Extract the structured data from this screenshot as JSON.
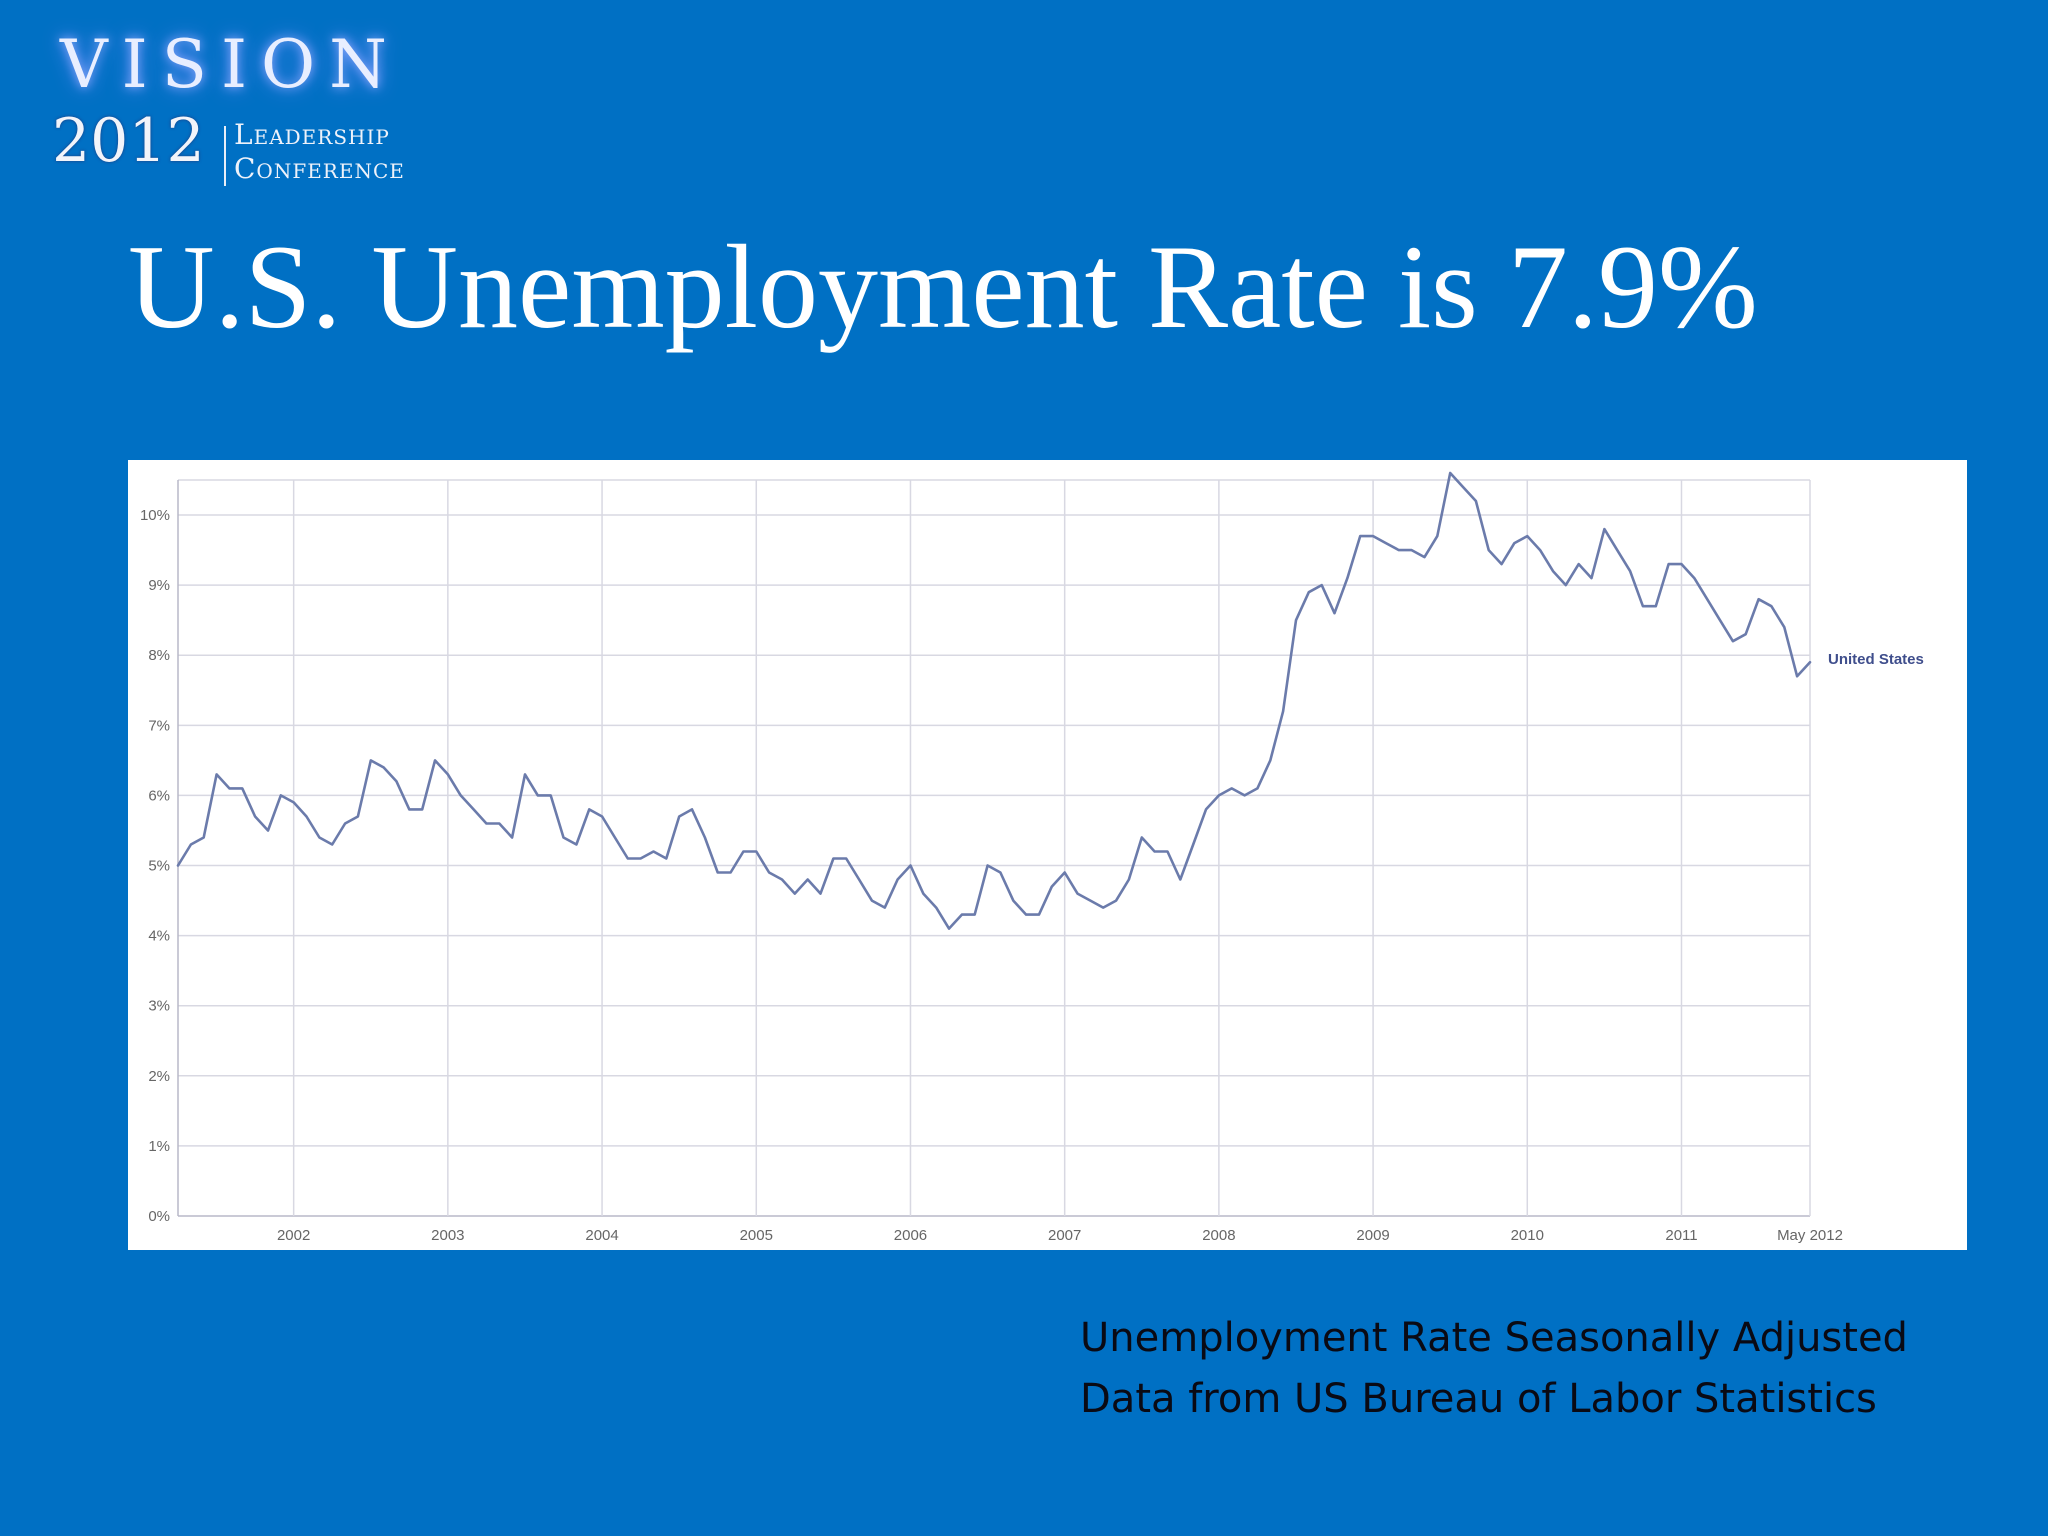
{
  "logo": {
    "line1": "VISION",
    "year": "2012",
    "line2": "Leadership",
    "line3": "Conference"
  },
  "slide_title": "U.S. Unemployment Rate is 7.9%",
  "caption": {
    "line1": "Unemployment Rate Seasonally Adjusted",
    "line2": "Data from US Bureau of Labor Statistics"
  },
  "colors": {
    "background": "#0070c4",
    "line": "#6b7bab",
    "panel": "#ffffff"
  },
  "chart_data": {
    "type": "line",
    "title": "",
    "xlabel": "",
    "ylabel": "",
    "ylim": [
      0,
      10.5
    ],
    "xlim": [
      "2001-04",
      "2012-05"
    ],
    "y_ticks": [
      "0%",
      "1%",
      "2%",
      "3%",
      "4%",
      "5%",
      "6%",
      "7%",
      "8%",
      "9%",
      "10%"
    ],
    "x_ticks": [
      "2002",
      "2003",
      "2004",
      "2005",
      "2006",
      "2007",
      "2008",
      "2009",
      "2010",
      "2011",
      "May 2012"
    ],
    "grid": true,
    "series": [
      {
        "name": "United States",
        "unit": "%",
        "start": "2001-04",
        "frequency": "monthly",
        "values": [
          5.0,
          5.3,
          5.4,
          6.3,
          6.1,
          6.1,
          5.7,
          5.5,
          6.0,
          5.9,
          5.7,
          5.4,
          5.3,
          5.6,
          5.7,
          6.5,
          6.4,
          6.2,
          5.8,
          5.8,
          6.5,
          6.3,
          6.0,
          5.8,
          5.6,
          5.6,
          5.4,
          6.3,
          6.0,
          6.0,
          5.4,
          5.3,
          5.8,
          5.7,
          5.4,
          5.1,
          5.1,
          5.2,
          5.1,
          5.7,
          5.8,
          5.4,
          4.9,
          4.9,
          5.2,
          5.2,
          4.9,
          4.8,
          4.6,
          4.8,
          4.6,
          5.1,
          5.1,
          4.8,
          4.5,
          4.4,
          4.8,
          5.0,
          4.6,
          4.4,
          4.1,
          4.3,
          4.3,
          5.0,
          4.9,
          4.5,
          4.3,
          4.3,
          4.7,
          4.9,
          4.6,
          4.5,
          4.4,
          4.5,
          4.8,
          5.4,
          5.2,
          5.2,
          4.8,
          5.3,
          5.8,
          6.0,
          6.1,
          6.0,
          6.1,
          6.5,
          7.2,
          8.5,
          8.9,
          9.0,
          8.6,
          9.1,
          9.7,
          9.7,
          9.6,
          9.5,
          9.5,
          9.4,
          9.7,
          10.6,
          10.4,
          10.2,
          9.5,
          9.3,
          9.6,
          9.7,
          9.5,
          9.2,
          9.0,
          9.3,
          9.1,
          9.8,
          9.5,
          9.2,
          8.7,
          8.7,
          9.3,
          9.3,
          9.1,
          8.8,
          8.5,
          8.2,
          8.3,
          8.8,
          8.7,
          8.4,
          7.7,
          7.9
        ]
      }
    ]
  }
}
